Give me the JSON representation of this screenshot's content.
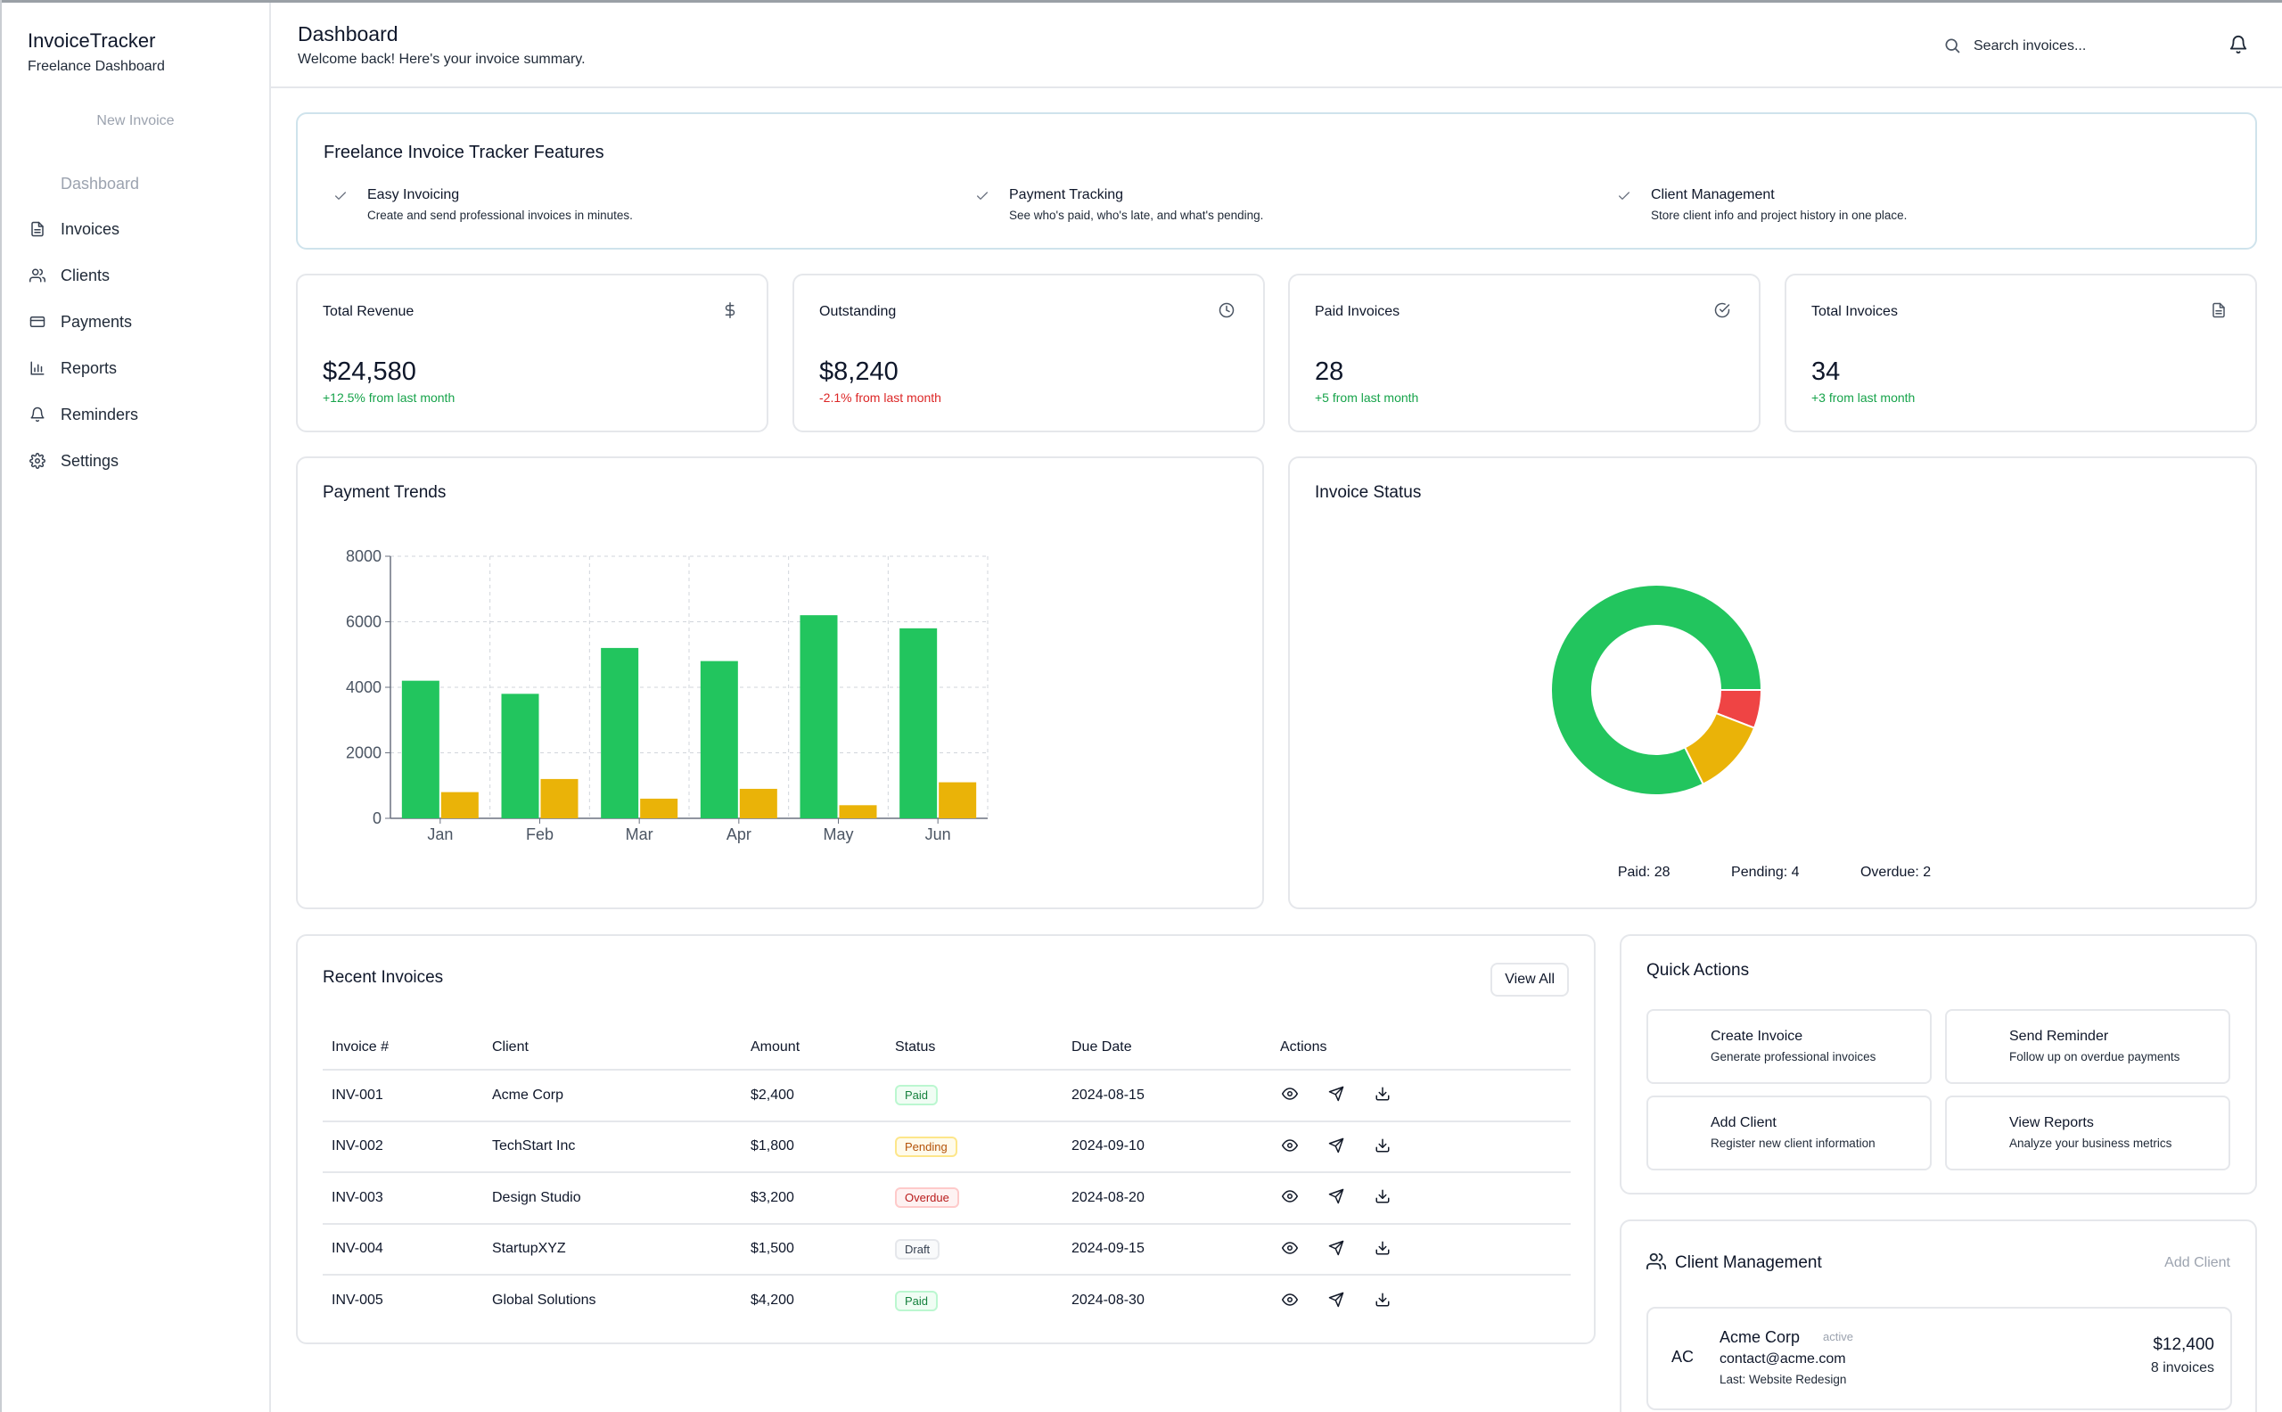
{
  "sidebar": {
    "brand_title": "InvoiceTracker",
    "brand_subtitle": "Freelance Dashboard",
    "new_invoice": "New Invoice",
    "items": [
      {
        "label": "Dashboard",
        "icon": "none"
      },
      {
        "label": "Invoices",
        "icon": "file-icon"
      },
      {
        "label": "Clients",
        "icon": "users-icon"
      },
      {
        "label": "Payments",
        "icon": "credit-card-icon"
      },
      {
        "label": "Reports",
        "icon": "bar-chart-icon"
      },
      {
        "label": "Reminders",
        "icon": "bell-icon"
      },
      {
        "label": "Settings",
        "icon": "gear-icon"
      }
    ]
  },
  "header": {
    "title": "Dashboard",
    "subtitle": "Welcome back! Here's your invoice summary.",
    "search_placeholder": "Search invoices..."
  },
  "features": {
    "title": "Freelance Invoice Tracker Features",
    "items": [
      {
        "title": "Easy Invoicing",
        "desc": "Create and send professional invoices in minutes."
      },
      {
        "title": "Payment Tracking",
        "desc": "See who's paid, who's late, and what's pending."
      },
      {
        "title": "Client Management",
        "desc": "Store client info and project history in one place."
      }
    ]
  },
  "stats": [
    {
      "label": "Total Revenue",
      "value": "$24,580",
      "change": "+12.5% from last month",
      "trend": "up",
      "icon": "dollar-icon"
    },
    {
      "label": "Outstanding",
      "value": "$8,240",
      "change": "-2.1% from last month",
      "trend": "down",
      "icon": "clock-icon"
    },
    {
      "label": "Paid Invoices",
      "value": "28",
      "change": "+5 from last month",
      "trend": "up",
      "icon": "check-circle-icon"
    },
    {
      "label": "Total Invoices",
      "value": "34",
      "change": "+3 from last month",
      "trend": "up",
      "icon": "document-icon"
    }
  ],
  "trends": {
    "title": "Payment Trends"
  },
  "status_card": {
    "title": "Invoice Status",
    "legend": [
      "Paid: 28",
      "Pending: 4",
      "Overdue: 2"
    ]
  },
  "chart_data": [
    {
      "type": "bar",
      "categories": [
        "Jan",
        "Feb",
        "Mar",
        "Apr",
        "May",
        "Jun"
      ],
      "series": [
        {
          "values": [
            4200,
            3800,
            5200,
            4800,
            6200,
            5800
          ],
          "color": "#22c55e"
        },
        {
          "values": [
            800,
            1200,
            600,
            900,
            400,
            1100
          ],
          "color": "#eab308"
        }
      ],
      "ylim": [
        0,
        8000
      ],
      "yticks": [
        0,
        2000,
        4000,
        6000,
        8000
      ],
      "grid": true
    },
    {
      "type": "pie",
      "donut": true,
      "slices": [
        {
          "label": "Paid",
          "value": 28,
          "color": "#22c55e"
        },
        {
          "label": "Pending",
          "value": 4,
          "color": "#eab308"
        },
        {
          "label": "Overdue",
          "value": 2,
          "color": "#ef4444"
        }
      ]
    }
  ],
  "recent": {
    "title": "Recent Invoices",
    "view_all": "View All",
    "columns": [
      "Invoice #",
      "Client",
      "Amount",
      "Status",
      "Due Date",
      "Actions"
    ],
    "rows": [
      {
        "id": "INV-001",
        "client": "Acme Corp",
        "amount": "$2,400",
        "status": "Paid",
        "due": "2024-08-15"
      },
      {
        "id": "INV-002",
        "client": "TechStart Inc",
        "amount": "$1,800",
        "status": "Pending",
        "due": "2024-09-10"
      },
      {
        "id": "INV-003",
        "client": "Design Studio",
        "amount": "$3,200",
        "status": "Overdue",
        "due": "2024-08-20"
      },
      {
        "id": "INV-004",
        "client": "StartupXYZ",
        "amount": "$1,500",
        "status": "Draft",
        "due": "2024-09-15"
      },
      {
        "id": "INV-005",
        "client": "Global Solutions",
        "amount": "$4,200",
        "status": "Paid",
        "due": "2024-08-30"
      }
    ]
  },
  "quick_actions": {
    "title": "Quick Actions",
    "items": [
      {
        "title": "Create Invoice",
        "desc": "Generate professional invoices"
      },
      {
        "title": "Send Reminder",
        "desc": "Follow up on overdue payments"
      },
      {
        "title": "Add Client",
        "desc": "Register new client information"
      },
      {
        "title": "View Reports",
        "desc": "Analyze your business metrics"
      }
    ]
  },
  "client_mgmt": {
    "title": "Client Management",
    "add_label": "Add Client",
    "client": {
      "initials": "AC",
      "name": "Acme Corp",
      "status": "active",
      "email": "contact@acme.com",
      "last": "Last: Website Redesign",
      "amount": "$12,400",
      "invoices": "8 invoices"
    }
  }
}
